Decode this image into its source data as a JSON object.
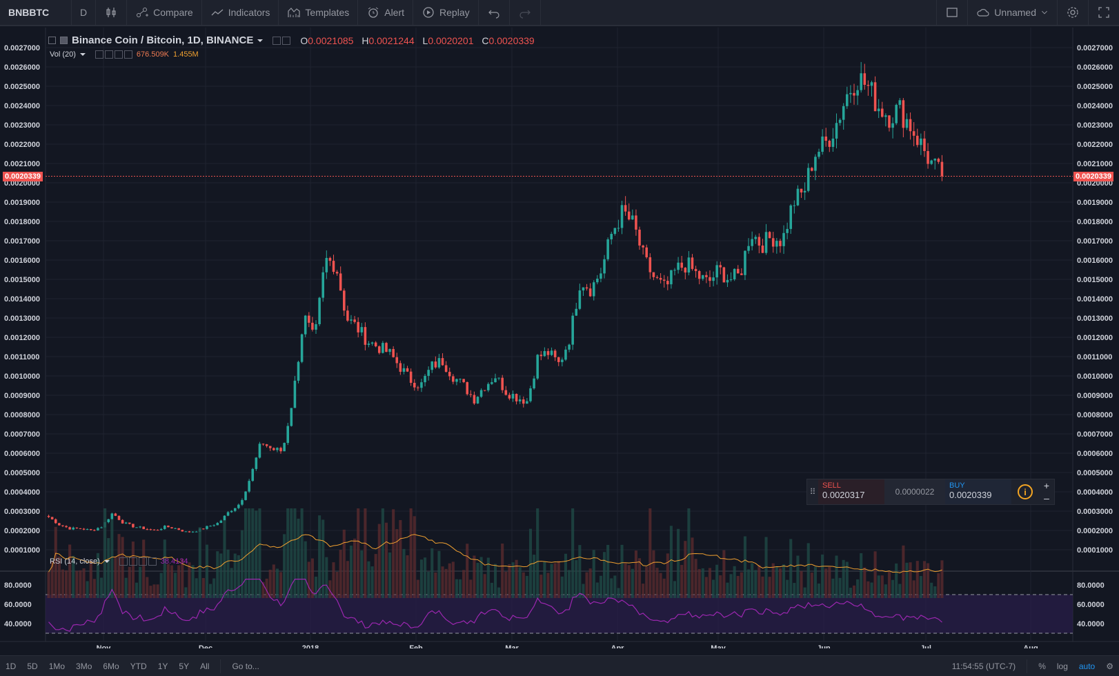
{
  "toolbar": {
    "symbol": "BNBBTC",
    "interval": "D",
    "compare_label": "Compare",
    "indicators_label": "Indicators",
    "templates_label": "Templates",
    "alert_label": "Alert",
    "replay_label": "Replay",
    "layout_name": "Unnamed"
  },
  "legend": {
    "title": "Binance Coin / Bitcoin, 1D, BINANCE",
    "o_key": "O",
    "o_val": "0.0021085",
    "h_key": "H",
    "h_val": "0.0021244",
    "l_key": "L",
    "l_val": "0.0020201",
    "c_key": "C",
    "c_val": "0.0020339",
    "vol_name": "Vol (20)",
    "vol_val1": "676.509K",
    "vol_val2": "1.455M",
    "rsi_name": "RSI (14, close)",
    "rsi_val": "38.4134"
  },
  "current_price": "0.0020339",
  "trade": {
    "sell_label": "SELL",
    "sell_value": "0.0020317",
    "spread": "0.0000022",
    "buy_label": "BUY",
    "buy_value": "0.0020339",
    "info_icon": "i",
    "plus": "+",
    "minus": "–"
  },
  "bottom": {
    "ranges": [
      "1D",
      "5D",
      "1Mo",
      "3Mo",
      "6Mo",
      "YTD",
      "1Y",
      "5Y",
      "All"
    ],
    "goto": "Go to...",
    "time": "11:54:55 (UTC-7)",
    "percent": "%",
    "log": "log",
    "auto": "auto"
  },
  "chart_data": {
    "type": "candlestick",
    "price_axis_labels": [
      "0.0027000",
      "0.0026000",
      "0.0025000",
      "0.0024000",
      "0.0023000",
      "0.0022000",
      "0.0021000",
      "0.0020000",
      "0.0019000",
      "0.0018000",
      "0.0017000",
      "0.0016000",
      "0.0015000",
      "0.0014000",
      "0.0013000",
      "0.0012000",
      "0.0011000",
      "0.0010000",
      "0.0009000",
      "0.0008000",
      "0.0007000",
      "0.0006000",
      "0.0005000",
      "0.0004000",
      "0.0003000",
      "0.0002000",
      "0.0001000"
    ],
    "time_axis_labels": [
      "Nov",
      "Dec",
      "2018",
      "Feb",
      "Mar",
      "Apr",
      "May",
      "Jun",
      "Jul",
      "Aug"
    ],
    "rsi_axis_labels": [
      "80.0000",
      "60.0000",
      "40.0000"
    ],
    "close_path": [
      0.00027,
      0.00023,
      0.00021,
      0.00021,
      0.0002,
      0.00022,
      0.00029,
      0.00024,
      0.00022,
      0.00021,
      0.0002,
      0.00022,
      0.00021,
      0.00019,
      0.0002,
      0.00022,
      0.00024,
      0.0003,
      0.00034,
      0.00048,
      0.00066,
      0.00062,
      0.00061,
      0.0009,
      0.00131,
      0.00118,
      0.0016,
      0.00158,
      0.0013,
      0.00125,
      0.00118,
      0.00115,
      0.00112,
      0.00105,
      0.00098,
      0.00095,
      0.00105,
      0.00108,
      0.001,
      0.00095,
      0.00088,
      0.00095,
      0.001,
      0.00092,
      0.00089,
      0.00087,
      0.0011,
      0.00112,
      0.00106,
      0.0012,
      0.0015,
      0.00145,
      0.00155,
      0.00175,
      0.00185,
      0.00178,
      0.0016,
      0.0015,
      0.00145,
      0.00155,
      0.00158,
      0.00152,
      0.00148,
      0.00155,
      0.0015,
      0.00152,
      0.00175,
      0.00168,
      0.00172,
      0.0017,
      0.0019,
      0.00195,
      0.00215,
      0.0022,
      0.0023,
      0.00245,
      0.00255,
      0.0025,
      0.0024,
      0.00235,
      0.00238,
      0.0023,
      0.0022,
      0.0021,
      0.00203
    ]
  }
}
